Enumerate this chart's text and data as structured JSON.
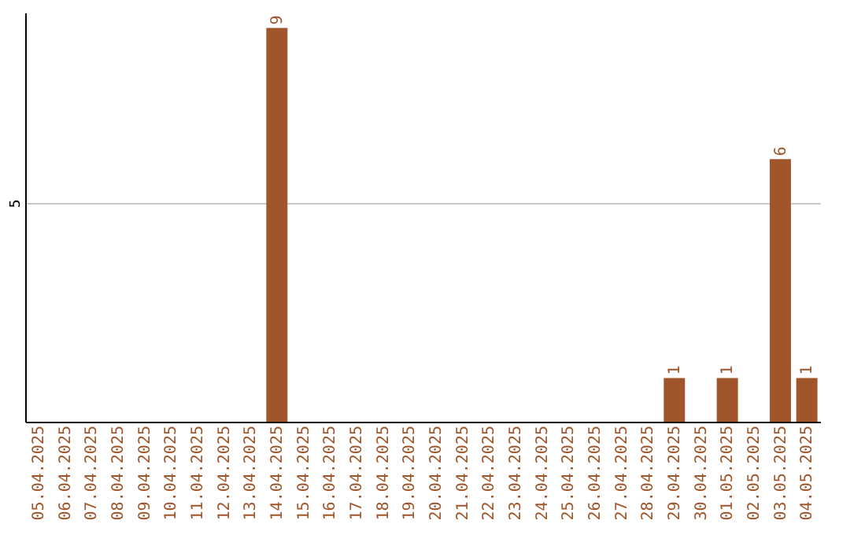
{
  "chart_data": {
    "type": "bar",
    "categories": [
      "05.04.2025",
      "06.04.2025",
      "07.04.2025",
      "08.04.2025",
      "09.04.2025",
      "10.04.2025",
      "11.04.2025",
      "12.04.2025",
      "13.04.2025",
      "14.04.2025",
      "15.04.2025",
      "16.04.2025",
      "17.04.2025",
      "18.04.2025",
      "19.04.2025",
      "20.04.2025",
      "21.04.2025",
      "22.04.2025",
      "23.04.2025",
      "24.04.2025",
      "25.04.2025",
      "26.04.2025",
      "27.04.2025",
      "28.04.2025",
      "29.04.2025",
      "30.04.2025",
      "01.05.2025",
      "02.05.2025",
      "03.05.2025",
      "04.05.2025"
    ],
    "values": [
      0,
      0,
      0,
      0,
      0,
      0,
      0,
      0,
      0,
      9,
      0,
      0,
      0,
      0,
      0,
      0,
      0,
      0,
      0,
      0,
      0,
      0,
      0,
      0,
      1,
      0,
      1,
      0,
      6,
      1
    ],
    "value_labels": [
      null,
      null,
      null,
      null,
      null,
      null,
      null,
      null,
      null,
      "9",
      null,
      null,
      null,
      null,
      null,
      null,
      null,
      null,
      null,
      null,
      null,
      null,
      null,
      null,
      "1",
      null,
      "1",
      null,
      "6",
      "1"
    ],
    "color": "#a0562a",
    "ylim": [
      0,
      9.35
    ],
    "yticks": [
      5
    ],
    "grid": "y"
  }
}
